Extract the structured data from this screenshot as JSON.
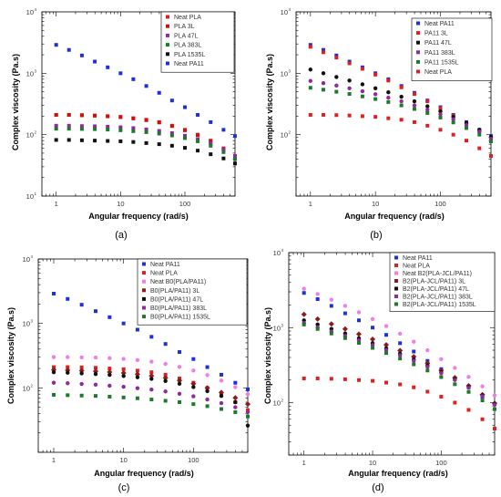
{
  "chart_data": [
    {
      "type": "scatter",
      "panel_label": "(a)",
      "xlabel": "Angular frequency (rad/s)",
      "ylabel": "Complex viscosity (Pa.s)",
      "xscale": "log",
      "yscale": "log",
      "xlim": [
        0.6,
        600
      ],
      "ylim": [
        10,
        10000
      ],
      "x_tick_labels": [
        {
          "value": 1,
          "label": "1"
        },
        {
          "value": 10,
          "label": "10"
        },
        {
          "value": 100,
          "label": "100"
        }
      ],
      "y_tick_labels": [
        {
          "value": 10,
          "label": "10"
        },
        {
          "value": 100,
          "label": "10"
        },
        {
          "value": 1000,
          "label": "10"
        },
        {
          "value": 10000,
          "label": "10"
        }
      ],
      "legend_position": "top-right",
      "grid": false,
      "x": [
        1,
        1.58,
        2.51,
        3.98,
        6.31,
        10,
        15.8,
        25.1,
        39.8,
        63.1,
        100,
        158,
        251,
        398,
        600
      ],
      "series": [
        {
          "name": "Neat PLA",
          "color": "#e02020",
          "values": [
            210,
            210,
            208,
            205,
            200,
            195,
            185,
            175,
            160,
            140,
            120,
            100,
            80,
            60,
            45
          ]
        },
        {
          "name": "PLA 3L",
          "color": "#cc1111",
          "values": [
            210,
            210,
            207,
            204,
            199,
            193,
            184,
            172,
            158,
            138,
            118,
            98,
            78,
            58,
            42
          ]
        },
        {
          "name": "PLA 47L",
          "color": "#8e2b9e",
          "values": [
            140,
            140,
            138,
            137,
            135,
            132,
            128,
            122,
            115,
            106,
            96,
            84,
            72,
            58,
            45
          ]
        },
        {
          "name": "PLA 383L",
          "color": "#1d7a2a",
          "values": [
            125,
            125,
            124,
            123,
            121,
            118,
            114,
            110,
            104,
            97,
            88,
            78,
            66,
            52,
            40
          ]
        },
        {
          "name": "PLA 1535L",
          "color": "#111111",
          "values": [
            82,
            82,
            81,
            80,
            79,
            78,
            76,
            73,
            70,
            66,
            61,
            55,
            48,
            41,
            34
          ]
        },
        {
          "name": "Neat PA11",
          "color": "#2030d8",
          "values": [
            2900,
            2400,
            1950,
            1550,
            1250,
            1000,
            800,
            620,
            480,
            360,
            280,
            210,
            160,
            120,
            95
          ]
        }
      ]
    },
    {
      "type": "scatter",
      "panel_label": "(b)",
      "xlabel": "Angular frequency (rad/s)",
      "ylabel": "Complex viscosity (Pa.s)",
      "xscale": "log",
      "yscale": "log",
      "xlim": [
        0.6,
        600
      ],
      "ylim": [
        10,
        10000
      ],
      "x_tick_labels": [
        {
          "value": 1,
          "label": "1"
        },
        {
          "value": 10,
          "label": "10"
        },
        {
          "value": 100,
          "label": "100"
        }
      ],
      "y_tick_labels": [
        {
          "value": 100,
          "label": "10"
        },
        {
          "value": 1000,
          "label": "10"
        },
        {
          "value": 10000,
          "label": "10"
        }
      ],
      "legend_position": "top-right",
      "grid": false,
      "x": [
        1,
        1.58,
        2.51,
        3.98,
        6.31,
        10,
        15.8,
        25.1,
        39.8,
        63.1,
        100,
        158,
        251,
        398,
        600
      ],
      "series": [
        {
          "name": "Neat PA11",
          "color": "#2030d8",
          "values": [
            2900,
            2400,
            1950,
            1550,
            1250,
            1000,
            800,
            620,
            480,
            360,
            280,
            210,
            160,
            120,
            95
          ]
        },
        {
          "name": "PA11 3L",
          "color": "#e02020",
          "values": [
            2700,
            2200,
            1800,
            1450,
            1180,
            950,
            760,
            590,
            460,
            350,
            270,
            205,
            155,
            115,
            90
          ]
        },
        {
          "name": "PA11 47L",
          "color": "#111111",
          "values": [
            1150,
            1000,
            870,
            760,
            660,
            570,
            490,
            415,
            350,
            290,
            240,
            195,
            155,
            120,
            92
          ]
        },
        {
          "name": "PA11 383L",
          "color": "#8e2b9e",
          "values": [
            750,
            690,
            630,
            570,
            510,
            455,
            400,
            350,
            300,
            255,
            215,
            178,
            143,
            112,
            86
          ]
        },
        {
          "name": "PA11 1535L",
          "color": "#1d7a2a",
          "values": [
            580,
            540,
            500,
            460,
            420,
            380,
            340,
            300,
            262,
            225,
            190,
            158,
            128,
            100,
            78
          ]
        },
        {
          "name": "Neat PLA",
          "color": "#e02020",
          "values": [
            210,
            210,
            208,
            205,
            200,
            195,
            185,
            175,
            160,
            140,
            120,
            100,
            80,
            60,
            45
          ]
        }
      ]
    },
    {
      "type": "scatter",
      "panel_label": "(c)",
      "xlabel": "Angular frequency (rad/s)",
      "ylabel": "Complex viscosity (Pa.s)",
      "xscale": "log",
      "yscale": "log",
      "xlim": [
        0.6,
        600
      ],
      "ylim": [
        10,
        10000
      ],
      "x_tick_labels": [
        {
          "value": 1,
          "label": "1"
        },
        {
          "value": 10,
          "label": "10"
        },
        {
          "value": 100,
          "label": "100"
        }
      ],
      "y_tick_labels": [
        {
          "value": 100,
          "label": "10"
        },
        {
          "value": 1000,
          "label": "10"
        },
        {
          "value": 10000,
          "label": "10"
        }
      ],
      "legend_position": "top-right",
      "grid": false,
      "x": [
        1,
        1.58,
        2.51,
        3.98,
        6.31,
        10,
        15.8,
        25.1,
        39.8,
        63.1,
        100,
        158,
        251,
        398,
        600
      ],
      "series": [
        {
          "name": "Neat PA11",
          "color": "#2030d8",
          "values": [
            2900,
            2400,
            1950,
            1550,
            1250,
            1000,
            800,
            620,
            480,
            360,
            280,
            210,
            160,
            120,
            95
          ]
        },
        {
          "name": "Neat PLA",
          "color": "#e02020",
          "values": [
            210,
            210,
            208,
            205,
            200,
            195,
            185,
            175,
            160,
            140,
            120,
            100,
            80,
            60,
            45
          ]
        },
        {
          "name": "Neat B0(PLA/PA11)",
          "color": "#f07ee8",
          "values": [
            300,
            300,
            298,
            296,
            290,
            282,
            270,
            255,
            235,
            212,
            186,
            158,
            130,
            103,
            80
          ]
        },
        {
          "name": "B0(PLA/PA11) 3L",
          "color": "#8a1c1c",
          "values": [
            190,
            188,
            185,
            181,
            176,
            170,
            163,
            154,
            143,
            130,
            116,
            100,
            85,
            70,
            56
          ]
        },
        {
          "name": "B0(PLA/PA11) 47L",
          "color": "#111111",
          "values": [
            175,
            172,
            168,
            164,
            159,
            153,
            146,
            138,
            128,
            116,
            103,
            89,
            75,
            60,
            26
          ]
        },
        {
          "name": "B0(PLA/PA11) 383L",
          "color": "#8e2b9e",
          "values": [
            120,
            118,
            115,
            112,
            108,
            104,
            99,
            94,
            88,
            81,
            74,
            66,
            58,
            50,
            42
          ]
        },
        {
          "name": "B0(PLA/PA11) 1535L",
          "color": "#1d7a2a",
          "values": [
            78,
            77,
            76,
            75,
            73,
            71,
            69,
            66,
            63,
            60,
            56,
            52,
            47,
            42,
            36
          ]
        }
      ]
    },
    {
      "type": "scatter",
      "panel_label": "(d)",
      "xlabel": "Angular frequency (rad/s)",
      "ylabel": "Complex viscosity (Pa.s)",
      "xscale": "log",
      "yscale": "log",
      "xlim": [
        0.6,
        600
      ],
      "ylim": [
        20,
        10000
      ],
      "x_tick_labels": [
        {
          "value": 1,
          "label": "1"
        },
        {
          "value": 10,
          "label": "10"
        },
        {
          "value": 100,
          "label": "100"
        }
      ],
      "y_tick_labels": [
        {
          "value": 100,
          "label": "10"
        },
        {
          "value": 1000,
          "label": "10"
        },
        {
          "value": 10000,
          "label": "10"
        }
      ],
      "legend_position": "top-right",
      "grid": false,
      "x": [
        1,
        1.58,
        2.51,
        3.98,
        6.31,
        10,
        15.8,
        25.1,
        39.8,
        63.1,
        100,
        158,
        251,
        398,
        600
      ],
      "series": [
        {
          "name": "Neat PA11",
          "color": "#2030d8",
          "values": [
            2900,
            2400,
            1950,
            1550,
            1250,
            1000,
            800,
            620,
            480,
            360,
            280,
            210,
            160,
            120,
            95
          ]
        },
        {
          "name": "Neat PLA",
          "color": "#e02020",
          "values": [
            210,
            210,
            208,
            205,
            200,
            195,
            185,
            175,
            160,
            140,
            120,
            100,
            80,
            60,
            45
          ]
        },
        {
          "name": "Neat B2(PLA-JCL/PA11)",
          "color": "#f07ee8",
          "values": [
            3300,
            2800,
            2350,
            1950,
            1600,
            1300,
            1050,
            830,
            650,
            500,
            380,
            290,
            220,
            165,
            125
          ]
        },
        {
          "name": "B2(PLA-JCL/PA11) 3L",
          "color": "#8a1c1c",
          "values": [
            1500,
            1300,
            1120,
            960,
            820,
            700,
            590,
            495,
            410,
            335,
            270,
            215,
            168,
            128,
            98
          ]
        },
        {
          "name": "B2(PLA-JCL/PA11) 47L",
          "color": "#111111",
          "values": [
            1250,
            1100,
            960,
            835,
            720,
            620,
            530,
            450,
            378,
            312,
            255,
            205,
            162,
            125,
            96
          ]
        },
        {
          "name": "B2(PLA-JCL/PA11) 383L",
          "color": "#8e2b9e",
          "values": [
            1150,
            1010,
            885,
            775,
            675,
            585,
            502,
            428,
            361,
            300,
            247,
            200,
            158,
            122,
            94
          ]
        },
        {
          "name": "B2(PLA-JCL/PA11) 1535L",
          "color": "#1d7a2a",
          "values": [
            1100,
            960,
            835,
            725,
            625,
            537,
            458,
            387,
            324,
            268,
            219,
            176,
            139,
            107,
            82
          ]
        }
      ]
    }
  ]
}
